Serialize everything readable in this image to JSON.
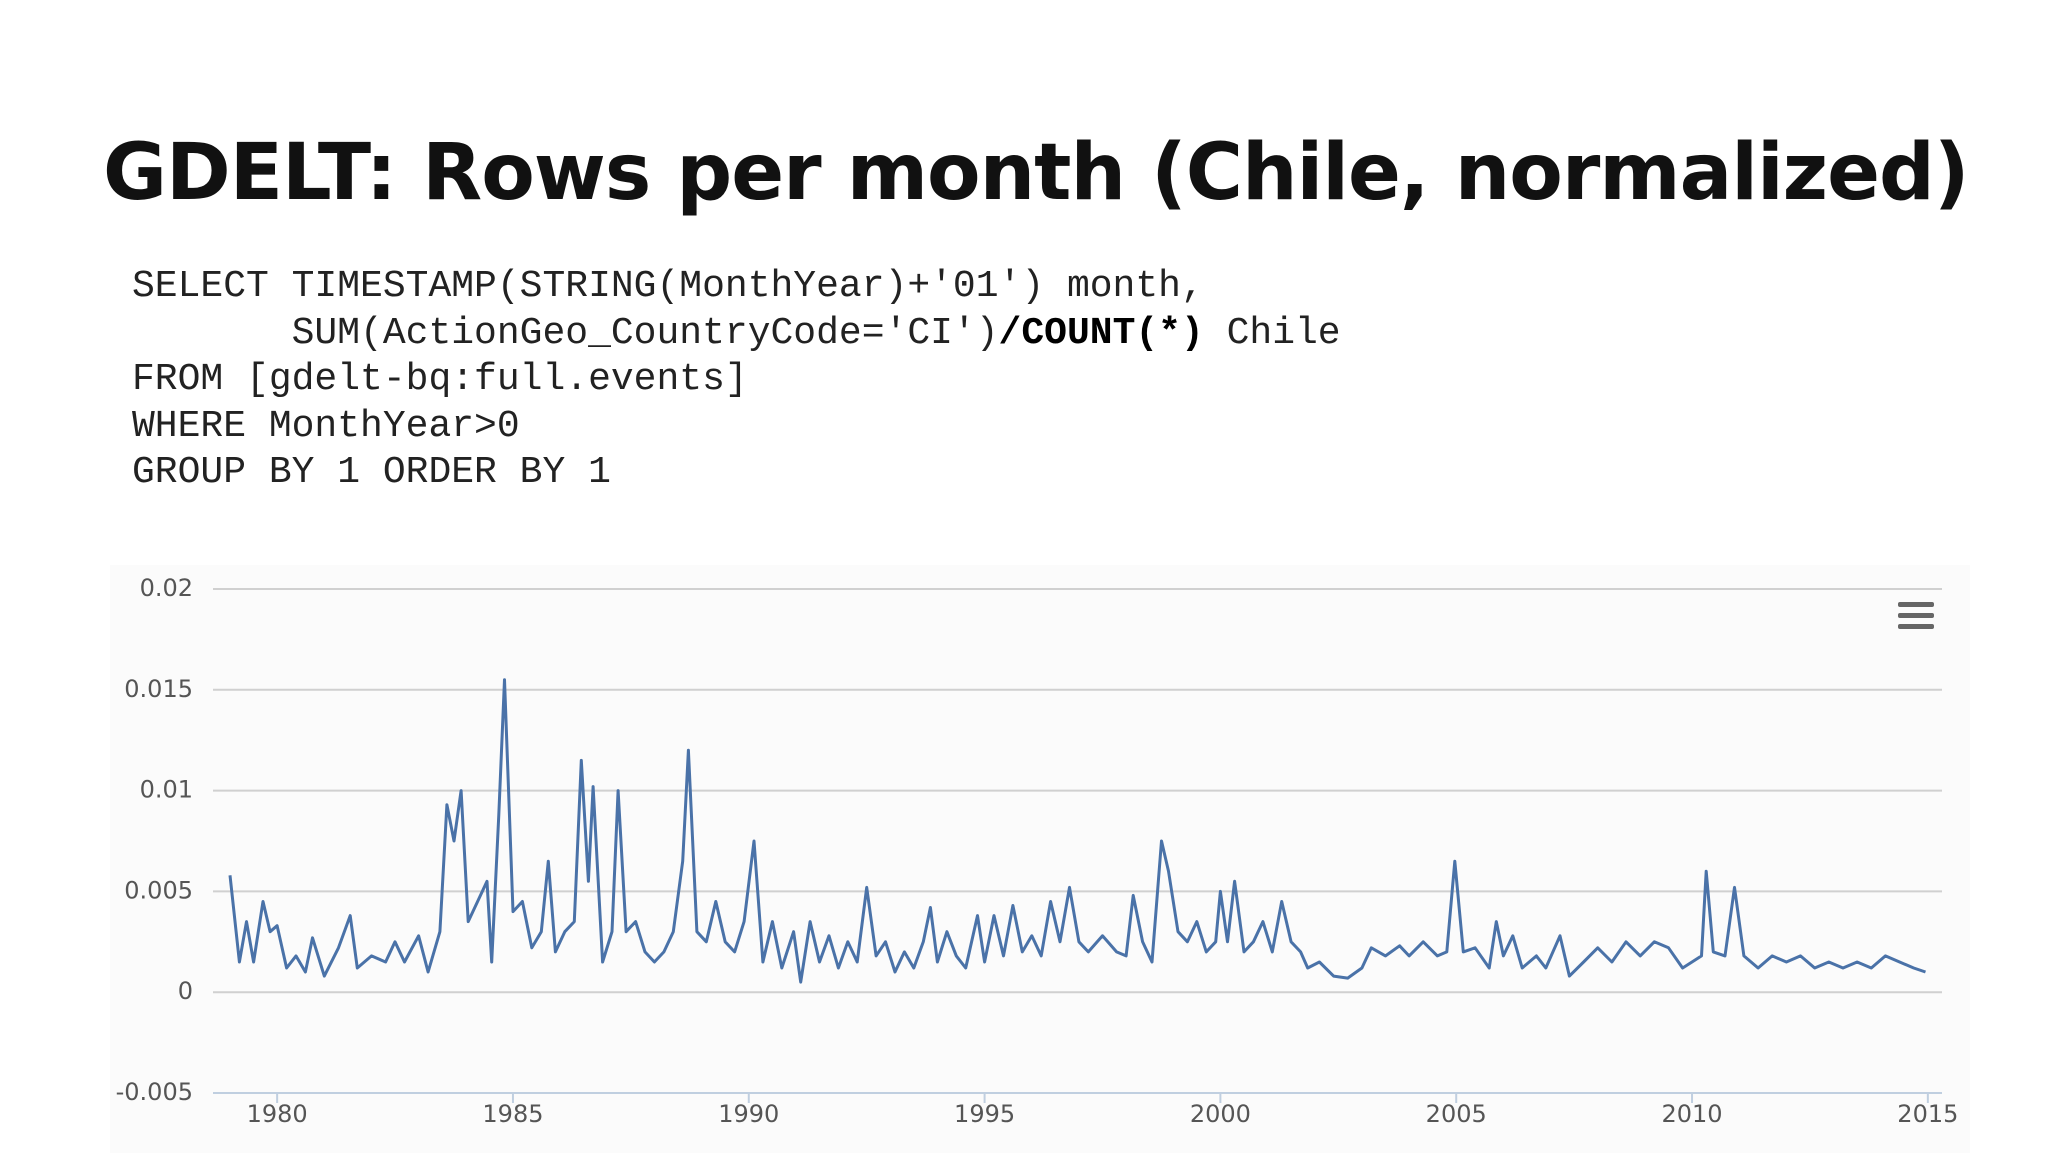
{
  "slide": {
    "title": "GDELT: Rows per month (Chile, normalized)",
    "code": [
      [
        {
          "text": "SELECT TIMESTAMP(STRING(MonthYear)+'01') month,"
        }
      ],
      [
        {
          "text": "       SUM(ActionGeo_CountryCode='CI')"
        },
        {
          "text": "/COUNT(*)",
          "bold": true
        },
        {
          "text": " Chile"
        }
      ],
      [
        {
          "text": "FROM [gdelt-bq:full.events]"
        }
      ],
      [
        {
          "text": "WHERE MonthYear>0"
        }
      ],
      [
        {
          "text": "GROUP BY 1 ORDER BY 1"
        }
      ]
    ]
  },
  "chart_data": {
    "type": "line",
    "grid": true,
    "color": "#4a72a8",
    "xlim": [
      1978.64,
      2015.3
    ],
    "xticks": [
      1980,
      1985,
      1990,
      1995,
      2000,
      2005,
      2010,
      2015
    ],
    "ylim": [
      -0.005,
      0.02
    ],
    "yticks": [
      0.02,
      0.015,
      0.01,
      0.005,
      0,
      -0.005
    ],
    "series": [
      {
        "name": "Chile",
        "color": "#4a72a8",
        "x": [
          1979.0,
          1979.2,
          1979.35,
          1979.5,
          1979.7,
          1979.85,
          1980.0,
          1980.2,
          1980.4,
          1980.6,
          1980.75,
          1981.0,
          1981.3,
          1981.55,
          1981.7,
          1982.0,
          1982.3,
          1982.5,
          1982.7,
          1983.0,
          1983.2,
          1983.45,
          1983.6,
          1983.75,
          1983.9,
          1984.05,
          1984.25,
          1984.45,
          1984.55,
          1984.7,
          1984.82,
          1985.0,
          1985.2,
          1985.4,
          1985.6,
          1985.75,
          1985.9,
          1986.1,
          1986.3,
          1986.45,
          1986.6,
          1986.7,
          1986.9,
          1987.1,
          1987.23,
          1987.4,
          1987.6,
          1987.8,
          1988.0,
          1988.2,
          1988.4,
          1988.6,
          1988.72,
          1988.9,
          1989.1,
          1989.3,
          1989.5,
          1989.7,
          1989.9,
          1990.11,
          1990.3,
          1990.5,
          1990.7,
          1990.95,
          1991.1,
          1991.3,
          1991.5,
          1991.7,
          1991.9,
          1992.1,
          1992.3,
          1992.5,
          1992.7,
          1992.9,
          1993.1,
          1993.3,
          1993.5,
          1993.7,
          1993.85,
          1994.0,
          1994.2,
          1994.4,
          1994.6,
          1994.85,
          1995.0,
          1995.2,
          1995.4,
          1995.6,
          1995.8,
          1996.0,
          1996.2,
          1996.4,
          1996.6,
          1996.8,
          1997.0,
          1997.2,
          1997.5,
          1997.8,
          1998.0,
          1998.15,
          1998.35,
          1998.55,
          1998.75,
          1998.9,
          1999.1,
          1999.3,
          1999.5,
          1999.7,
          1999.9,
          2000.0,
          2000.15,
          2000.3,
          2000.5,
          2000.7,
          2000.9,
          2001.1,
          2001.3,
          2001.5,
          2001.7,
          2001.85,
          2002.1,
          2002.4,
          2002.7,
          2003.0,
          2003.2,
          2003.5,
          2003.8,
          2004.0,
          2004.3,
          2004.6,
          2004.8,
          2004.97,
          2005.15,
          2005.4,
          2005.7,
          2005.85,
          2006.0,
          2006.2,
          2006.4,
          2006.7,
          2006.9,
          2007.2,
          2007.4,
          2007.7,
          2008.0,
          2008.3,
          2008.6,
          2008.9,
          2009.2,
          2009.5,
          2009.8,
          2010.0,
          2010.2,
          2010.3,
          2010.45,
          2010.7,
          2010.9,
          2011.1,
          2011.4,
          2011.7,
          2012.0,
          2012.3,
          2012.6,
          2012.9,
          2013.2,
          2013.5,
          2013.8,
          2014.1,
          2014.4,
          2014.7,
          2014.95
        ],
        "values": [
          0.0058,
          0.0015,
          0.0035,
          0.0015,
          0.0045,
          0.003,
          0.0033,
          0.0012,
          0.0018,
          0.001,
          0.0027,
          0.0008,
          0.0022,
          0.0038,
          0.0012,
          0.0018,
          0.0015,
          0.0025,
          0.0015,
          0.0028,
          0.001,
          0.003,
          0.0093,
          0.0075,
          0.01,
          0.0035,
          0.0045,
          0.0055,
          0.0015,
          0.0088,
          0.0155,
          0.004,
          0.0045,
          0.0022,
          0.003,
          0.0065,
          0.002,
          0.003,
          0.0035,
          0.0115,
          0.0055,
          0.0102,
          0.0015,
          0.003,
          0.01,
          0.003,
          0.0035,
          0.002,
          0.0015,
          0.002,
          0.003,
          0.0065,
          0.012,
          0.003,
          0.0025,
          0.0045,
          0.0025,
          0.002,
          0.0035,
          0.0075,
          0.0015,
          0.0035,
          0.0012,
          0.003,
          0.0005,
          0.0035,
          0.0015,
          0.0028,
          0.0012,
          0.0025,
          0.0015,
          0.0052,
          0.0018,
          0.0025,
          0.001,
          0.002,
          0.0012,
          0.0025,
          0.0042,
          0.0015,
          0.003,
          0.0018,
          0.0012,
          0.0038,
          0.0015,
          0.0038,
          0.0018,
          0.0043,
          0.002,
          0.0028,
          0.0018,
          0.0045,
          0.0025,
          0.0052,
          0.0025,
          0.002,
          0.0028,
          0.002,
          0.0018,
          0.0048,
          0.0025,
          0.0015,
          0.0075,
          0.006,
          0.003,
          0.0025,
          0.0035,
          0.002,
          0.0025,
          0.005,
          0.0025,
          0.0055,
          0.002,
          0.0025,
          0.0035,
          0.002,
          0.0045,
          0.0025,
          0.002,
          0.0012,
          0.0015,
          0.0008,
          0.0007,
          0.0012,
          0.0022,
          0.0018,
          0.0023,
          0.0018,
          0.0025,
          0.0018,
          0.002,
          0.0065,
          0.002,
          0.0022,
          0.0012,
          0.0035,
          0.0018,
          0.0028,
          0.0012,
          0.0018,
          0.0012,
          0.0028,
          0.0008,
          0.0015,
          0.0022,
          0.0015,
          0.0025,
          0.0018,
          0.0025,
          0.0022,
          0.0012,
          0.0015,
          0.0018,
          0.006,
          0.002,
          0.0018,
          0.0052,
          0.0018,
          0.0012,
          0.0018,
          0.0015,
          0.0018,
          0.0012,
          0.0015,
          0.0012,
          0.0015,
          0.0012,
          0.0018,
          0.0015,
          0.0012,
          0.001
        ]
      }
    ]
  }
}
